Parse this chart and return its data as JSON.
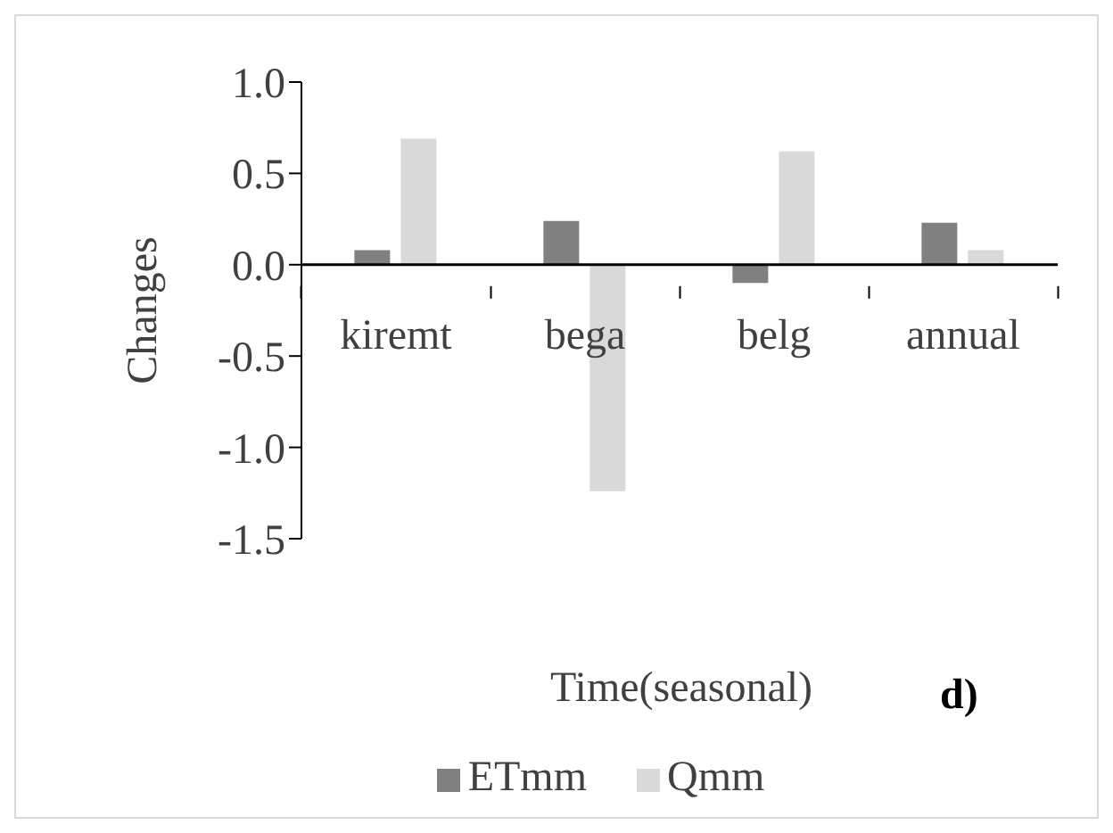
{
  "chart_data": {
    "type": "bar",
    "xlabel": "Time(seasonal)",
    "ylabel": "Changes",
    "categories": [
      "kiremt",
      "bega",
      "belg",
      "annual"
    ],
    "series": [
      {
        "name": "ETmm",
        "color": "#808080",
        "values": [
          0.08,
          0.24,
          -0.1,
          0.23
        ]
      },
      {
        "name": "Qmm",
        "color": "#d9d9d9",
        "values": [
          0.69,
          -1.24,
          0.62,
          0.08
        ]
      }
    ],
    "ylim": [
      -1.5,
      1.0
    ],
    "yticks": [
      {
        "value": -1.5,
        "label": "-1.5"
      },
      {
        "value": -1.0,
        "label": "-1.0"
      },
      {
        "value": -0.5,
        "label": "-0.5"
      },
      {
        "value": 0,
        "label": "0.0"
      },
      {
        "value": 0.5,
        "label": "0.5"
      },
      {
        "value": 1.0,
        "label": "1.0"
      }
    ],
    "grid": false,
    "legend": "bottom",
    "annotations": [
      "d)"
    ]
  }
}
